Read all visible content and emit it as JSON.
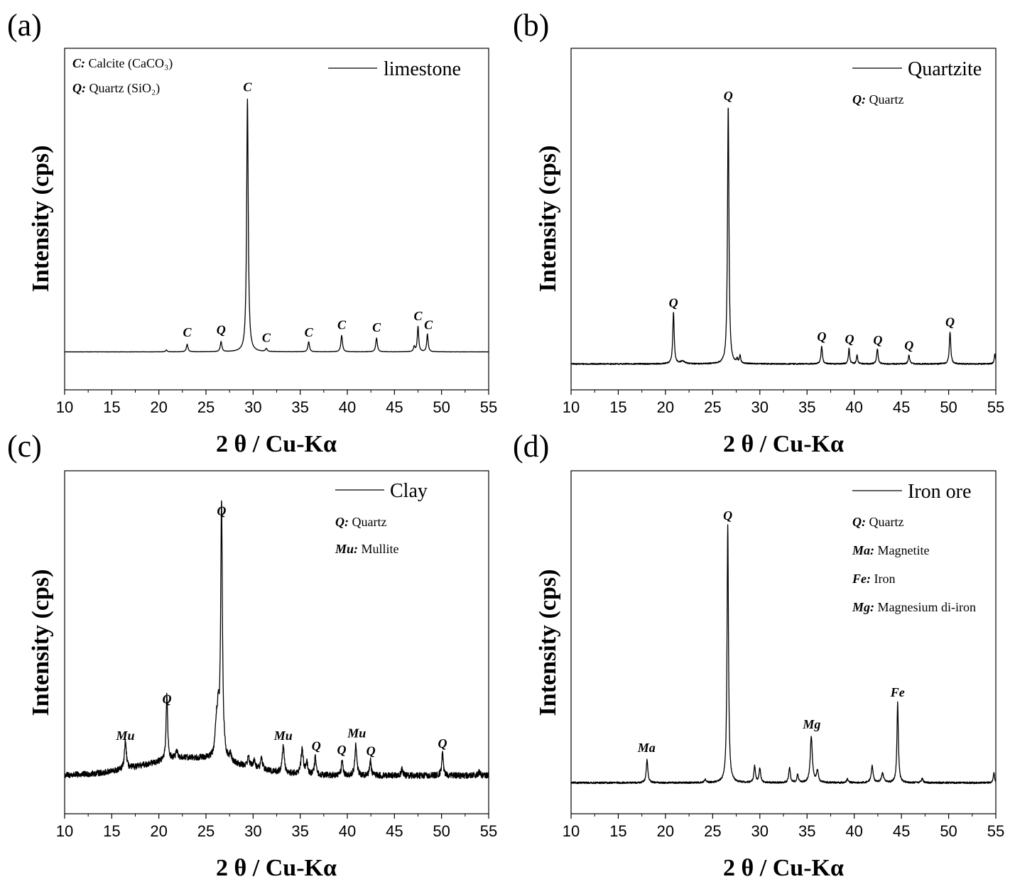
{
  "chart_data": [
    {
      "panel": "(a)",
      "type": "line",
      "xlabel": "2 θ / Cu-Kα",
      "ylabel": "Intensity (cps)",
      "xlim": [
        10,
        55
      ],
      "ylim": [
        -15,
        120
      ],
      "xticks": [
        "10",
        "15",
        "20",
        "25",
        "30",
        "35",
        "40",
        "45",
        "50",
        "55"
      ],
      "legend": "limestone",
      "notes": [
        {
          "abbr": "C:",
          "text": "Calcite (CaCO₃)"
        },
        {
          "abbr": "Q:",
          "text": "Quartz (SiO₂)"
        }
      ],
      "baseline": 0,
      "noise": 0.05,
      "peaks": [
        {
          "x": 20.8,
          "h": 0.8,
          "w": 0.08
        },
        {
          "x": 23.0,
          "h": 3,
          "w": 0.1
        },
        {
          "x": 26.6,
          "h": 4,
          "w": 0.1
        },
        {
          "x": 29.4,
          "h": 100,
          "w": 0.1
        },
        {
          "x": 31.4,
          "h": 1.2,
          "w": 0.1
        },
        {
          "x": 35.9,
          "h": 4,
          "w": 0.1
        },
        {
          "x": 39.4,
          "h": 6.5,
          "w": 0.1
        },
        {
          "x": 43.1,
          "h": 5.5,
          "w": 0.1
        },
        {
          "x": 47.1,
          "h": 2,
          "w": 0.09
        },
        {
          "x": 47.5,
          "h": 10,
          "w": 0.09
        },
        {
          "x": 48.5,
          "h": 7,
          "w": 0.09
        }
      ],
      "peak_labels": [
        {
          "x": 29.4,
          "y": 103,
          "text": "C"
        },
        {
          "x": 23.0,
          "y": 6,
          "text": "C"
        },
        {
          "x": 26.6,
          "y": 7,
          "text": "Q"
        },
        {
          "x": 31.4,
          "y": 4,
          "text": "C"
        },
        {
          "x": 35.9,
          "y": 6,
          "text": "C"
        },
        {
          "x": 39.4,
          "y": 9,
          "text": "C"
        },
        {
          "x": 43.1,
          "y": 8,
          "text": "C"
        },
        {
          "x": 47.5,
          "y": 12.5,
          "text": "C"
        },
        {
          "x": 48.6,
          "y": 9,
          "text": "C"
        }
      ]
    },
    {
      "panel": "(b)",
      "type": "line",
      "xlabel": "2 θ / Cu-Kα",
      "ylabel": "Intensity (cps)",
      "xlim": [
        10,
        55
      ],
      "ylim": [
        -10,
        122
      ],
      "xticks": [
        "10",
        "15",
        "20",
        "25",
        "30",
        "35",
        "40",
        "45",
        "50",
        "55"
      ],
      "legend": "Quartzite",
      "notes": [
        {
          "abbr": "Q:",
          "text": "Quartz"
        }
      ],
      "baseline": 0,
      "noise": 0.25,
      "peaks": [
        {
          "x": 20.85,
          "h": 20,
          "w": 0.09
        },
        {
          "x": 21.8,
          "h": 1,
          "w": 0.3
        },
        {
          "x": 26.65,
          "h": 100,
          "w": 0.09
        },
        {
          "x": 27.6,
          "h": 1.5,
          "w": 0.08
        },
        {
          "x": 27.9,
          "h": 3,
          "w": 0.08
        },
        {
          "x": 36.55,
          "h": 7,
          "w": 0.09
        },
        {
          "x": 39.45,
          "h": 6,
          "w": 0.08
        },
        {
          "x": 40.3,
          "h": 3.5,
          "w": 0.08
        },
        {
          "x": 42.45,
          "h": 6,
          "w": 0.09
        },
        {
          "x": 45.8,
          "h": 3.5,
          "w": 0.09
        },
        {
          "x": 50.15,
          "h": 12.5,
          "w": 0.09
        },
        {
          "x": 54.9,
          "h": 4,
          "w": 0.08
        }
      ],
      "peak_labels": [
        {
          "x": 26.65,
          "y": 102,
          "text": "Q"
        },
        {
          "x": 20.85,
          "y": 22,
          "text": "Q"
        },
        {
          "x": 36.55,
          "y": 9,
          "text": "Q"
        },
        {
          "x": 39.5,
          "y": 8,
          "text": "Q"
        },
        {
          "x": 42.5,
          "y": 7.5,
          "text": "Q"
        },
        {
          "x": 45.8,
          "y": 5.5,
          "text": "Q"
        },
        {
          "x": 50.15,
          "y": 14.5,
          "text": "Q"
        }
      ]
    },
    {
      "panel": "(c)",
      "type": "line",
      "xlabel": "2 θ / Cu-Kα",
      "ylabel": "Intensity (cps)",
      "xlim": [
        10,
        55
      ],
      "ylim": [
        -15,
        120
      ],
      "xticks": [
        "10",
        "15",
        "20",
        "25",
        "30",
        "35",
        "40",
        "45",
        "50",
        "55"
      ],
      "legend": "Clay",
      "notes": [
        {
          "abbr": "Q:",
          "text": "Quartz"
        },
        {
          "abbr": "Mu:",
          "text": "Mullite"
        }
      ],
      "baseline": 0,
      "noise": 1.2,
      "hump": {
        "x": 23.5,
        "h": 7,
        "w": 5
      },
      "peaks": [
        {
          "x": 16.45,
          "h": 11,
          "w": 0.12
        },
        {
          "x": 20.85,
          "h": 26,
          "w": 0.1
        },
        {
          "x": 21.9,
          "h": 2.5,
          "w": 0.15
        },
        {
          "x": 26.1,
          "h": 12,
          "w": 0.15
        },
        {
          "x": 26.3,
          "h": 14,
          "w": 0.12
        },
        {
          "x": 26.65,
          "h": 100,
          "w": 0.11
        },
        {
          "x": 27.6,
          "h": 3,
          "w": 0.1
        },
        {
          "x": 29.5,
          "h": 4,
          "w": 0.12
        },
        {
          "x": 30.1,
          "h": 3,
          "w": 0.12
        },
        {
          "x": 30.9,
          "h": 4.5,
          "w": 0.12
        },
        {
          "x": 33.2,
          "h": 11,
          "w": 0.12
        },
        {
          "x": 35.2,
          "h": 10,
          "w": 0.14
        },
        {
          "x": 35.7,
          "h": 5,
          "w": 0.12
        },
        {
          "x": 36.6,
          "h": 7,
          "w": 0.1
        },
        {
          "x": 39.45,
          "h": 6,
          "w": 0.1
        },
        {
          "x": 40.9,
          "h": 12,
          "w": 0.12
        },
        {
          "x": 42.45,
          "h": 6,
          "w": 0.1
        },
        {
          "x": 45.8,
          "h": 2.5,
          "w": 0.1
        },
        {
          "x": 50.1,
          "h": 9,
          "w": 0.1
        },
        {
          "x": 54.0,
          "h": 1.5,
          "w": 0.12
        }
      ],
      "peak_labels": [
        {
          "x": 26.65,
          "y": 102.5,
          "text": "Q"
        },
        {
          "x": 20.85,
          "y": 28.5,
          "text": "Q"
        },
        {
          "x": 16.45,
          "y": 14,
          "text": "Mu"
        },
        {
          "x": 33.2,
          "y": 14,
          "text": "Mu"
        },
        {
          "x": 36.7,
          "y": 10,
          "text": "Q"
        },
        {
          "x": 39.4,
          "y": 8.5,
          "text": "Q"
        },
        {
          "x": 41.0,
          "y": 15,
          "text": "Mu"
        },
        {
          "x": 42.5,
          "y": 8,
          "text": "Q"
        },
        {
          "x": 50.1,
          "y": 11,
          "text": "Q"
        }
      ]
    },
    {
      "panel": "(d)",
      "type": "line",
      "xlabel": "2 θ / Cu-Kα",
      "ylabel": "Intensity (cps)",
      "xlim": [
        10,
        55
      ],
      "ylim": [
        -12,
        121
      ],
      "xticks": [
        "10",
        "15",
        "20",
        "25",
        "30",
        "35",
        "40",
        "45",
        "50",
        "55"
      ],
      "legend": "Iron ore",
      "notes": [
        {
          "abbr": "Q:",
          "text": "Quartz"
        },
        {
          "abbr": "Ma:",
          "text": "Magnetite"
        },
        {
          "abbr": "Fe:",
          "text": "Iron"
        },
        {
          "abbr": "Mg:",
          "text": "Magnesium di-iron"
        }
      ],
      "baseline": 0,
      "noise": 0.35,
      "peaks": [
        {
          "x": 18.05,
          "h": 9,
          "w": 0.1
        },
        {
          "x": 24.2,
          "h": 1.2,
          "w": 0.1
        },
        {
          "x": 26.6,
          "h": 100,
          "w": 0.09
        },
        {
          "x": 29.45,
          "h": 6.5,
          "w": 0.1
        },
        {
          "x": 30.0,
          "h": 5.5,
          "w": 0.1
        },
        {
          "x": 33.15,
          "h": 6,
          "w": 0.1
        },
        {
          "x": 34.0,
          "h": 3,
          "w": 0.1
        },
        {
          "x": 35.45,
          "h": 18,
          "w": 0.13
        },
        {
          "x": 36.1,
          "h": 4.5,
          "w": 0.12
        },
        {
          "x": 39.3,
          "h": 1.5,
          "w": 0.1
        },
        {
          "x": 41.9,
          "h": 6.5,
          "w": 0.12
        },
        {
          "x": 43.0,
          "h": 3.5,
          "w": 0.15
        },
        {
          "x": 44.6,
          "h": 31,
          "w": 0.09
        },
        {
          "x": 47.2,
          "h": 1.5,
          "w": 0.12
        },
        {
          "x": 54.8,
          "h": 4,
          "w": 0.08
        }
      ],
      "peak_labels": [
        {
          "x": 26.6,
          "y": 102,
          "text": "Q"
        },
        {
          "x": 18.0,
          "y": 12,
          "text": "Ma"
        },
        {
          "x": 35.5,
          "y": 21,
          "text": "Mg"
        },
        {
          "x": 44.6,
          "y": 33.5,
          "text": "Fe"
        }
      ]
    }
  ]
}
